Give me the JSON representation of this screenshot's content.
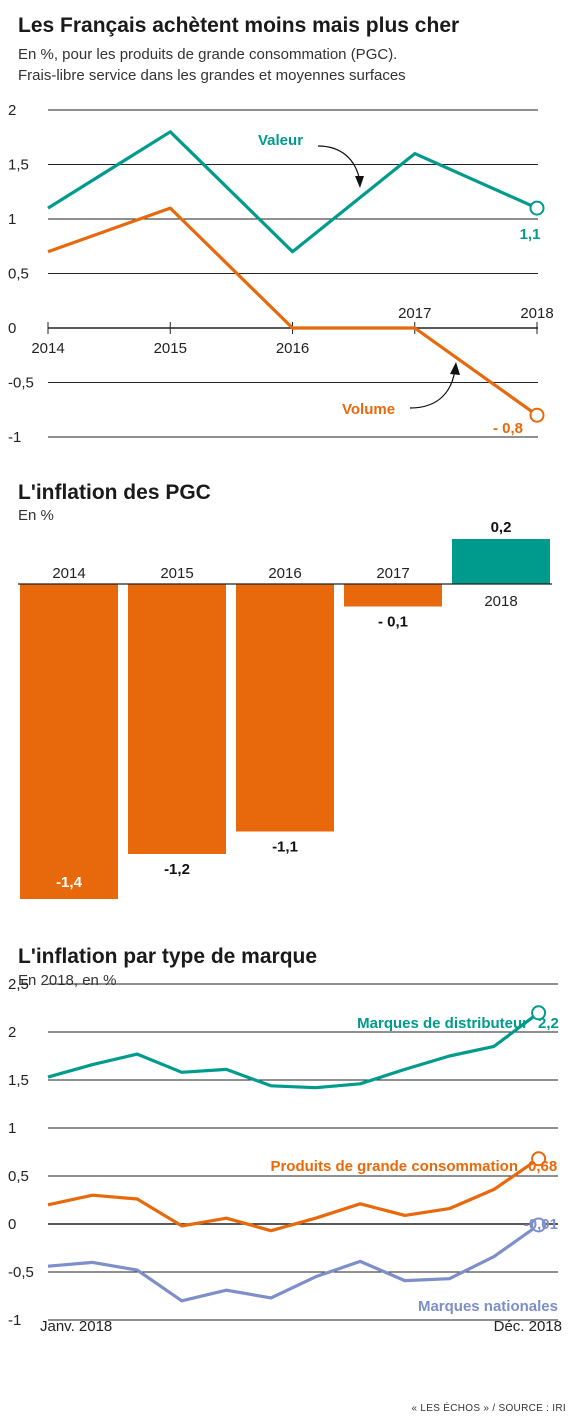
{
  "header": {
    "title": "Les Français achètent moins mais plus cher",
    "subtitle_line1": "En %, pour les produits de grande consommation (PGC).",
    "subtitle_line2": "Frais-libre service dans les grandes et moyennes surfaces"
  },
  "section2": {
    "title": "L'inflation des PGC",
    "subtitle": "En %"
  },
  "section3": {
    "title": "L'inflation par type de marque",
    "subtitle": "En 2018, en %"
  },
  "footer": {
    "source": "« LES ÉCHOS » / SOURCE : IRI"
  },
  "colors": {
    "teal": "#009b8d",
    "orange": "#e8690b",
    "blue": "#7d8ec9",
    "grid": "#222222"
  },
  "chart_data": [
    {
      "type": "line",
      "x": [
        "2014",
        "2015",
        "2016",
        "2017",
        "2018"
      ],
      "yticks": [
        "2",
        "1,5",
        "1",
        "0,5",
        "0",
        "-0,5",
        "-1"
      ],
      "ylim": [
        -1,
        2
      ],
      "series": [
        {
          "name": "Valeur",
          "color": "#009b8d",
          "values": [
            1.1,
            1.8,
            0.7,
            1.6,
            1.1
          ],
          "end_label": "1,1"
        },
        {
          "name": "Volume",
          "color": "#e8690b",
          "values": [
            0.7,
            1.1,
            0.0,
            0.0,
            -0.8
          ],
          "end_label": "- 0,8"
        }
      ]
    },
    {
      "type": "bar",
      "categories": [
        "2014",
        "2015",
        "2016",
        "2017",
        "2018"
      ],
      "values": [
        -1.4,
        -1.2,
        -1.1,
        -0.1,
        0.2
      ],
      "labels": [
        "-1,4",
        "-1,2",
        "-1,1",
        "- 0,1",
        "0,2"
      ],
      "colors": {
        "negative": "#e8690b",
        "positive": "#009b8d"
      }
    },
    {
      "type": "line",
      "x_start_label": "Janv. 2018",
      "x_end_label": "Déc. 2018",
      "yticks": [
        "2,5",
        "2",
        "1,5",
        "1",
        "0,5",
        "0",
        "-0,5",
        "-1"
      ],
      "ylim": [
        -1,
        2.5
      ],
      "series": [
        {
          "name": "Marques de distributeur",
          "color": "#009b8d",
          "values": [
            1.53,
            1.66,
            1.77,
            1.58,
            1.61,
            1.44,
            1.42,
            1.46,
            1.61,
            1.75,
            1.85,
            2.2
          ],
          "end_label": "2,2"
        },
        {
          "name": "Produits de grande consommation",
          "color": "#e8690b",
          "values": [
            0.2,
            0.3,
            0.26,
            -0.02,
            0.06,
            -0.07,
            0.06,
            0.21,
            0.09,
            0.16,
            0.36,
            0.68
          ],
          "end_label": "0,68"
        },
        {
          "name": "Marques nationales",
          "color": "#7d8ec9",
          "values": [
            -0.44,
            -0.4,
            -0.48,
            -0.8,
            -0.69,
            -0.77,
            -0.55,
            -0.39,
            -0.59,
            -0.57,
            -0.34,
            -0.01
          ],
          "end_label": "-0,01"
        }
      ]
    }
  ]
}
